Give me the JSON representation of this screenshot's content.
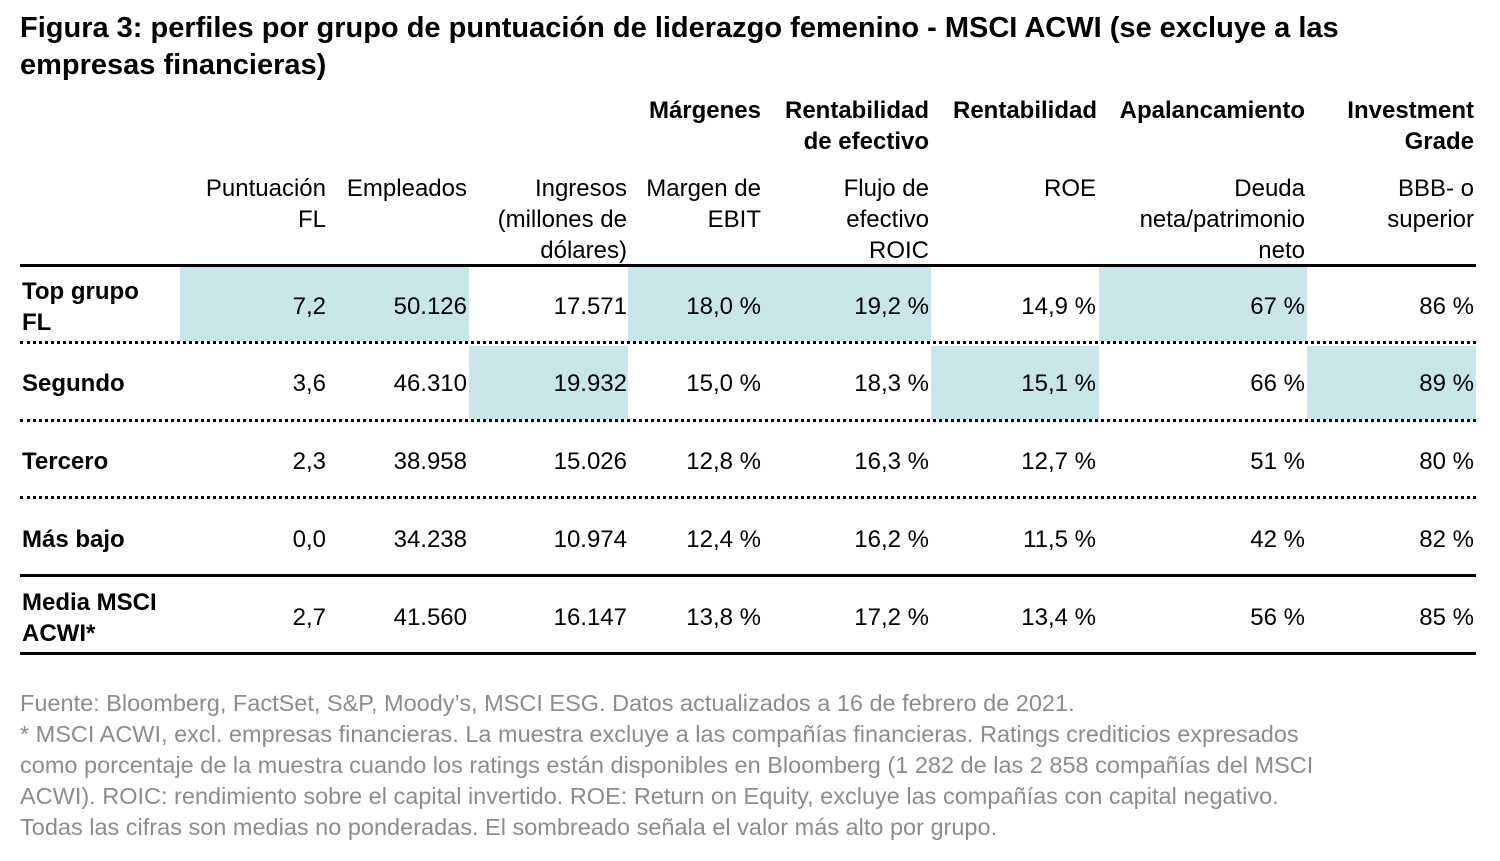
{
  "title": "Figura 3: perfiles por grupo de puntuación de liderazgo femenino - MSCI ACWI (se excluye a las empresas financieras)",
  "group_headers": {
    "margenes": "Márgenes",
    "rentabilidad_efectivo": "Rentabilidad de efectivo",
    "rentabilidad": "Rentabilidad",
    "apalancamiento": "Apalancamiento",
    "investment_grade": "Investment Grade"
  },
  "columns": {
    "puntuacion": "Puntuación FL",
    "empleados": "Empleados",
    "ingresos": "Ingresos (millones de dólares)",
    "margen": "Margen de EBIT",
    "flujo": "Flujo de efectivo ROIC",
    "roe": "ROE",
    "deuda": "Deuda neta/patrimonio neto",
    "bbb": "BBB- o superior"
  },
  "rows": [
    {
      "label": "Top grupo FL",
      "puntuacion": "7,2",
      "empleados": "50.126",
      "ingresos": "17.571",
      "margen": "18,0 %",
      "flujo": "19,2 %",
      "roe": "14,9 %",
      "deuda": "67 %",
      "bbb": "86 %"
    },
    {
      "label": "Segundo",
      "puntuacion": "3,6",
      "empleados": "46.310",
      "ingresos": "19.932",
      "margen": "15,0 %",
      "flujo": "18,3 %",
      "roe": "15,1 %",
      "deuda": "66 %",
      "bbb": "89 %"
    },
    {
      "label": "Tercero",
      "puntuacion": "2,3",
      "empleados": "38.958",
      "ingresos": "15.026",
      "margen": "12,8 %",
      "flujo": "16,3 %",
      "roe": "12,7 %",
      "deuda": "51 %",
      "bbb": "80 %"
    },
    {
      "label": "Más bajo",
      "puntuacion": "0,0",
      "empleados": "34.238",
      "ingresos": "10.974",
      "margen": "12,4 %",
      "flujo": "16,2 %",
      "roe": "11,5 %",
      "deuda": "42 %",
      "bbb": "82 %"
    },
    {
      "label": "Media MSCI ACWI*",
      "puntuacion": "2,7",
      "empleados": "41.560",
      "ingresos": "16.147",
      "margen": "13,8 %",
      "flujo": "17,2 %",
      "roe": "13,4 %",
      "deuda": "56 %",
      "bbb": "85 %"
    }
  ],
  "highlight_color": "#c8e6ea",
  "footnote": {
    "source": "Fuente: Bloomberg, FactSet, S&P, Moody’s, MSCI ESG. Datos actualizados a 16 de febrero de 2021.",
    "line1": "* MSCI ACWI, excl. empresas financieras. La muestra excluye a las compañías financieras. Ratings crediticios expresados",
    "line2": "como porcentaje de la muestra cuando los ratings están disponibles en Bloomberg (1 282 de las 2 858 compañías del MSCI",
    "line3": "ACWI). ROIC: rendimiento sobre el capital invertido. ROE: Return on Equity, excluye las compañías con capital negativo.",
    "line4": "Todas las cifras son medias no ponderadas. El sombreado señala el valor más alto por grupo."
  }
}
